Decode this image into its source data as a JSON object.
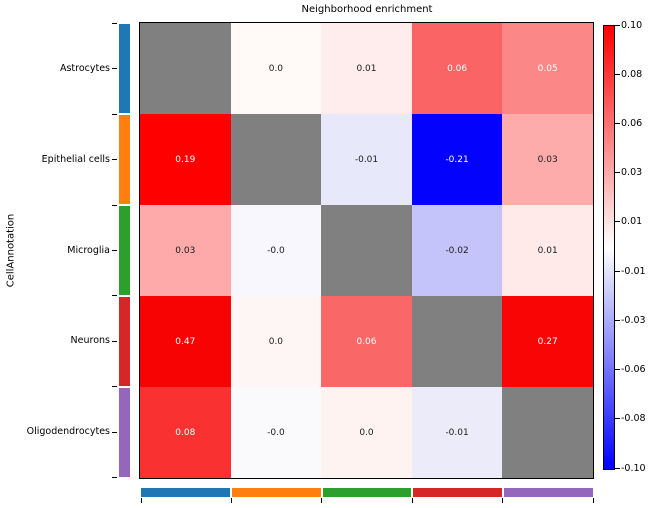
{
  "title": "Neighborhood enrichment",
  "ylabel": "CellAnnotation",
  "categories": [
    "Astrocytes",
    "Epithelial cells",
    "Microglia",
    "Neurons",
    "Oligodendrocytes"
  ],
  "category_colors": [
    "#1f77b4",
    "#ff7f0e",
    "#2ca02c",
    "#d62728",
    "#9467bd"
  ],
  "chart_data": {
    "type": "heatmap",
    "title": "Neighborhood enrichment",
    "ylabel": "CellAnnotation",
    "rows": [
      "Astrocytes",
      "Epithelial cells",
      "Microglia",
      "Neurons",
      "Oligodendrocytes"
    ],
    "cols": [
      "Astrocytes",
      "Epithelial cells",
      "Microglia",
      "Neurons",
      "Oligodendrocytes"
    ],
    "row_annotation_colors": [
      "#1f77b4",
      "#ff7f0e",
      "#2ca02c",
      "#d62728",
      "#9467bd"
    ],
    "col_annotation_colors": [
      "#1f77b4",
      "#ff7f0e",
      "#2ca02c",
      "#d62728",
      "#9467bd"
    ],
    "values": [
      [
        null,
        0.0,
        0.01,
        0.06,
        0.05
      ],
      [
        0.19,
        null,
        -0.01,
        -0.21,
        0.03
      ],
      [
        0.03,
        0.0,
        null,
        -0.02,
        0.01
      ],
      [
        0.47,
        0.0,
        0.06,
        null,
        0.27
      ],
      [
        0.08,
        0.0,
        0.0,
        -0.01,
        null
      ]
    ],
    "diagonal_color": "#808080",
    "cells": [
      [
        {
          "label": "",
          "bg": "#808080",
          "fg": "#ffffff"
        },
        {
          "label": "0.0",
          "bg": "#fff9f7",
          "fg": "#1a1a1a"
        },
        {
          "label": "0.01",
          "bg": "#ffecec",
          "fg": "#1a1a1a"
        },
        {
          "label": "0.06",
          "bg": "#fa6464",
          "fg": "#ffffff"
        },
        {
          "label": "0.05",
          "bg": "#fb8787",
          "fg": "#ffffff"
        }
      ],
      [
        {
          "label": "0.19",
          "bg": "#ff0000",
          "fg": "#ffffff"
        },
        {
          "label": "",
          "bg": "#808080",
          "fg": "#ffffff"
        },
        {
          "label": "-0.01",
          "bg": "#e8e8fb",
          "fg": "#1a1a1a"
        },
        {
          "label": "-0.21",
          "bg": "#0202fd",
          "fg": "#ffffff"
        },
        {
          "label": "0.03",
          "bg": "#feabab",
          "fg": "#1a1a1a"
        }
      ],
      [
        {
          "label": "0.03",
          "bg": "#ffaaaa",
          "fg": "#1a1a1a"
        },
        {
          "label": "-0.0",
          "bg": "#f7f7fd",
          "fg": "#1a1a1a"
        },
        {
          "label": "",
          "bg": "#808080",
          "fg": "#ffffff"
        },
        {
          "label": "-0.02",
          "bg": "#c4c4fa",
          "fg": "#1a1a1a"
        },
        {
          "label": "0.01",
          "bg": "#ffe9e9",
          "fg": "#1a1a1a"
        }
      ],
      [
        {
          "label": "0.47",
          "bg": "#f80303",
          "fg": "#ffffff"
        },
        {
          "label": "0.0",
          "bg": "#fef6f4",
          "fg": "#1a1a1a"
        },
        {
          "label": "0.06",
          "bg": "#fa6767",
          "fg": "#ffffff"
        },
        {
          "label": "",
          "bg": "#808080",
          "fg": "#ffffff"
        },
        {
          "label": "0.27",
          "bg": "#fa0505",
          "fg": "#ffffff"
        }
      ],
      [
        {
          "label": "0.08",
          "bg": "#fa3131",
          "fg": "#ffffff"
        },
        {
          "label": "-0.0",
          "bg": "#fafafd",
          "fg": "#1a1a1a"
        },
        {
          "label": "0.0",
          "bg": "#fef3f0",
          "fg": "#1a1a1a"
        },
        {
          "label": "-0.01",
          "bg": "#ebebf9",
          "fg": "#1a1a1a"
        },
        {
          "label": "",
          "bg": "#808080",
          "fg": "#ffffff"
        }
      ]
    ],
    "colorbar": {
      "vmin": -0.1,
      "vmax": 0.1,
      "max_color": "#ff0000",
      "mid_color": "#ffffff",
      "min_color": "#0000ff",
      "tick_labels": [
        "0.10",
        "0.08",
        "0.06",
        "0.03",
        "0.01",
        "-0.01",
        "-0.03",
        "-0.06",
        "-0.08",
        "-0.10"
      ]
    },
    "legend_position": "right",
    "grid": false
  }
}
